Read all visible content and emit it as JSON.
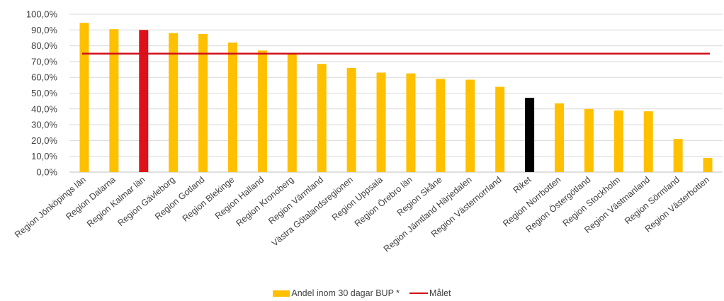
{
  "chart_data": {
    "type": "bar",
    "categories": [
      "Region Jönköpings län",
      "Region Dalarna",
      "Region Kalmar län",
      "Region Gävleborg",
      "Region Gotland",
      "Region Blekinge",
      "Region Halland",
      "Region Kronoberg",
      "Region Värmland",
      "Västra Götalandsregionen",
      "Region Uppsala",
      "Region Örebro län",
      "Region Skåne",
      "Region Jämtland Härjedalen",
      "Region Västernorrland",
      "Riket",
      "Region Norrbotten",
      "Region Östergötland",
      "Region Stockholm",
      "Region Västmanland",
      "Region Sörmland",
      "Region Västerbotten"
    ],
    "series": [
      {
        "name": "Andel inom 30 dagar BUP *",
        "values": [
          94.5,
          90.5,
          90.0,
          88.0,
          87.5,
          82.0,
          77.0,
          74.5,
          68.5,
          66.0,
          63.0,
          62.5,
          59.0,
          58.5,
          54.0,
          47.0,
          43.5,
          40.0,
          39.0,
          38.5,
          21.0,
          9.0
        ],
        "color": "#FFC000",
        "highlight_colors": {
          "Region Kalmar län": "#E0101A",
          "Riket": "#000000"
        }
      },
      {
        "name": "Målet",
        "type": "line",
        "value": 75.0,
        "color": "#D0101A"
      }
    ],
    "ylim": [
      0,
      100
    ],
    "yticks": [
      "0,0%",
      "10,0%",
      "20,0%",
      "30,0%",
      "40,0%",
      "50,0%",
      "60,0%",
      "70,0%",
      "80,0%",
      "90,0%",
      "100,0%"
    ],
    "grid": true,
    "legend_position": "bottom"
  },
  "legend": {
    "bar_label": "Andel inom 30 dagar BUP *",
    "line_label": "Målet"
  }
}
